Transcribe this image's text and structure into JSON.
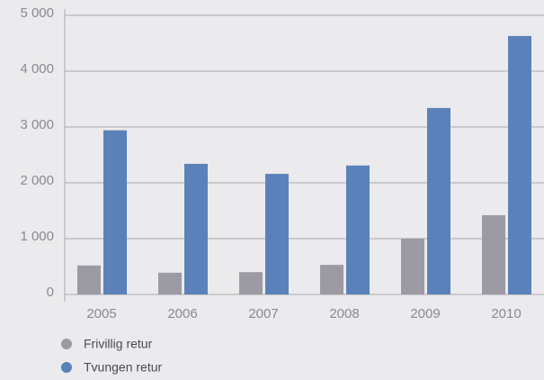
{
  "chart_data": {
    "type": "bar",
    "categories": [
      "2005",
      "2006",
      "2007",
      "2008",
      "2009",
      "2010"
    ],
    "series": [
      {
        "name": "Frivillig retur",
        "color": "#9c9ba4",
        "values": [
          520,
          390,
          400,
          530,
          1000,
          1420
        ]
      },
      {
        "name": "Tvungen retur",
        "color": "#5b81ba",
        "values": [
          2940,
          2340,
          2160,
          2310,
          3340,
          4630
        ]
      }
    ],
    "ylim": [
      0,
      5000
    ],
    "yticks": [
      0,
      {
        "value": 1000,
        "label": "1 000"
      },
      {
        "value": 2000,
        "label": "2 000"
      },
      {
        "value": 3000,
        "label": "3 000"
      },
      {
        "value": 4000,
        "label": "4 000"
      },
      {
        "value": 5000,
        "label": "5 000"
      }
    ],
    "grid": true
  }
}
